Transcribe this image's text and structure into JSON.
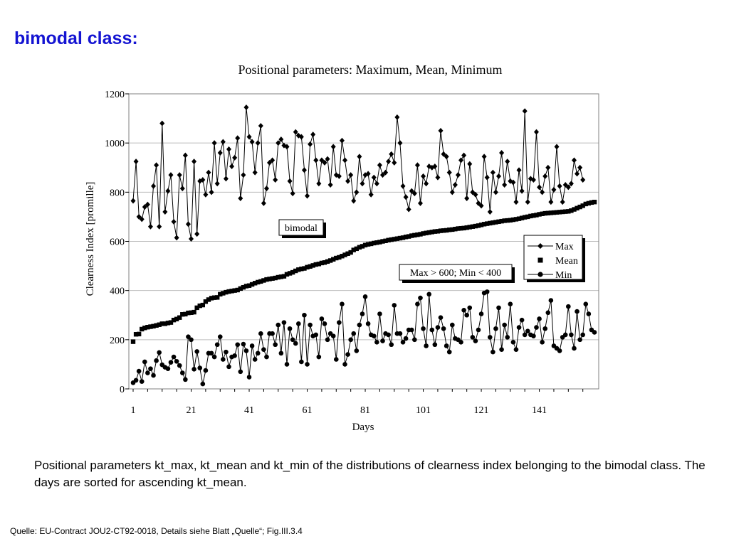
{
  "slide": {
    "title": "bimodal class:",
    "caption": "Positional parameters kt_max, kt_mean and kt_min of the distributions of clearness index belonging to the bimodal class. The days are sorted for ascending kt_mean.",
    "source": "Quelle: EU-Contract JOU2-CT92-0018, Details siehe Blatt „Quelle“; Fig.III.3.4"
  },
  "chart_data": {
    "type": "line",
    "title": "Positional parameters: Maximum, Mean, Minimum",
    "xlabel": "Days",
    "ylabel": "Clearness Index [promille]",
    "xlim": [
      1,
      160
    ],
    "ylim": [
      0,
      1200
    ],
    "xticks": [
      1,
      21,
      41,
      61,
      81,
      101,
      121,
      141
    ],
    "yticks": [
      0,
      200,
      400,
      600,
      800,
      1000,
      1200
    ],
    "grid": "horizontal",
    "legend_position": "right",
    "annotations": [
      "bimodal",
      "Max > 600; Min < 400"
    ],
    "series": [
      {
        "name": "Max",
        "marker": "diamond",
        "line": true,
        "values": [
          765,
          925,
          700,
          690,
          740,
          750,
          660,
          825,
          910,
          660,
          1080,
          720,
          805,
          870,
          680,
          615,
          870,
          815,
          950,
          670,
          610,
          925,
          630,
          845,
          850,
          790,
          880,
          800,
          1000,
          835,
          960,
          1005,
          855,
          975,
          905,
          940,
          1020,
          775,
          870,
          1145,
          1025,
          1005,
          880,
          1000,
          1070,
          755,
          815,
          920,
          930,
          850,
          1000,
          1015,
          990,
          985,
          845,
          795,
          1045,
          1030,
          1025,
          890,
          785,
          995,
          1035,
          930,
          835,
          930,
          920,
          935,
          830,
          985,
          870,
          865,
          1010,
          930,
          845,
          870,
          765,
          800,
          945,
          835,
          870,
          875,
          790,
          860,
          835,
          910,
          870,
          880,
          925,
          955,
          920,
          1105,
          1000,
          825,
          780,
          730,
          805,
          795,
          910,
          755,
          865,
          835,
          905,
          900,
          905,
          860,
          1050,
          955,
          945,
          880,
          800,
          830,
          870,
          930,
          950,
          775,
          915,
          800,
          790,
          755,
          745,
          945,
          860,
          720,
          880,
          800,
          865,
          960,
          830,
          925,
          845,
          840,
          760,
          890,
          805,
          1130,
          760,
          855,
          850,
          1045,
          820,
          800,
          865,
          900,
          760,
          810,
          985,
          825,
          760,
          830,
          820,
          835,
          930,
          875,
          900,
          850
        ]
      },
      {
        "name": "Mean",
        "marker": "square",
        "line": false,
        "values": [
          192,
          222,
          223,
          243,
          248,
          251,
          253,
          255,
          258,
          261,
          265,
          265,
          268,
          270,
          280,
          284,
          290,
          303,
          304,
          309,
          310,
          312,
          330,
          338,
          341,
          355,
          363,
          369,
          371,
          372,
          385,
          389,
          393,
          396,
          398,
          400,
          402,
          408,
          413,
          418,
          420,
          425,
          430,
          434,
          437,
          441,
          445,
          447,
          449,
          451,
          454,
          456,
          458,
          466,
          470,
          474,
          480,
          485,
          488,
          490,
          495,
          498,
          502,
          506,
          508,
          512,
          514,
          518,
          522,
          527,
          532,
          535,
          540,
          545,
          550,
          555,
          565,
          570,
          576,
          580,
          585,
          588,
          590,
          593,
          595,
          597,
          600,
          602,
          605,
          607,
          609,
          611,
          613,
          615,
          618,
          620,
          623,
          625,
          627,
          629,
          632,
          634,
          636,
          638,
          640,
          641,
          643,
          644,
          645,
          647,
          648,
          650,
          652,
          653,
          654,
          656,
          658,
          660,
          662,
          664,
          667,
          670,
          672,
          674,
          676,
          678,
          680,
          682,
          684,
          685,
          686,
          688,
          690,
          692,
          695,
          698,
          700,
          703,
          705,
          707,
          710,
          712,
          714,
          715,
          716,
          717,
          718,
          719,
          720,
          721,
          722,
          725,
          730,
          735,
          740,
          745,
          752,
          755,
          758,
          760
        ]
      },
      {
        "name": "Min",
        "marker": "circle",
        "line": true,
        "values": [
          25,
          35,
          72,
          30,
          110,
          65,
          82,
          55,
          115,
          148,
          98,
          88,
          82,
          108,
          130,
          112,
          95,
          65,
          38,
          212,
          200,
          80,
          152,
          85,
          20,
          75,
          145,
          145,
          130,
          180,
          212,
          120,
          150,
          90,
          130,
          135,
          180,
          70,
          182,
          155,
          48,
          175,
          120,
          145,
          225,
          160,
          130,
          225,
          225,
          180,
          260,
          145,
          270,
          100,
          245,
          200,
          185,
          265,
          110,
          300,
          100,
          260,
          215,
          220,
          130,
          285,
          265,
          200,
          225,
          215,
          120,
          270,
          345,
          100,
          140,
          200,
          225,
          155,
          260,
          305,
          375,
          265,
          220,
          215,
          190,
          305,
          195,
          225,
          220,
          180,
          340,
          225,
          225,
          190,
          205,
          240,
          240,
          200,
          345,
          370,
          245,
          175,
          385,
          240,
          180,
          250,
          290,
          245,
          175,
          150,
          260,
          205,
          200,
          190,
          320,
          300,
          330,
          210,
          195,
          240,
          305,
          390,
          395,
          210,
          150,
          245,
          330,
          160,
          260,
          210,
          345,
          190,
          160,
          250,
          280,
          220,
          235,
          220,
          215,
          250,
          285,
          190,
          245,
          310,
          360,
          175,
          165,
          155,
          210,
          220,
          335,
          220,
          165,
          315,
          200,
          220,
          345,
          305,
          240,
          230
        ]
      }
    ]
  }
}
